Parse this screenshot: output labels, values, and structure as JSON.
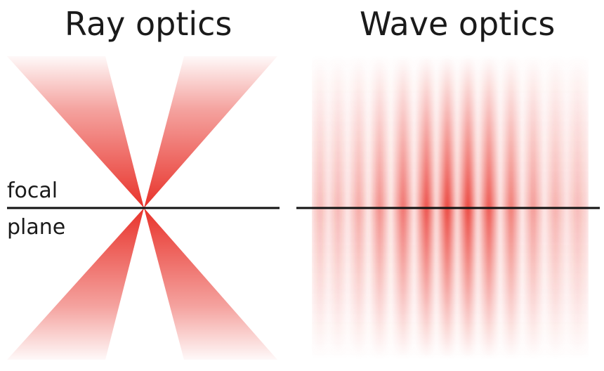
{
  "titles": {
    "left": "Ray optics",
    "right": "Wave optics"
  },
  "labels": {
    "focal": "focal",
    "plane": "plane"
  },
  "colors": {
    "beam": "#e8322a",
    "line": "#111111",
    "background": "#ffffff"
  }
}
